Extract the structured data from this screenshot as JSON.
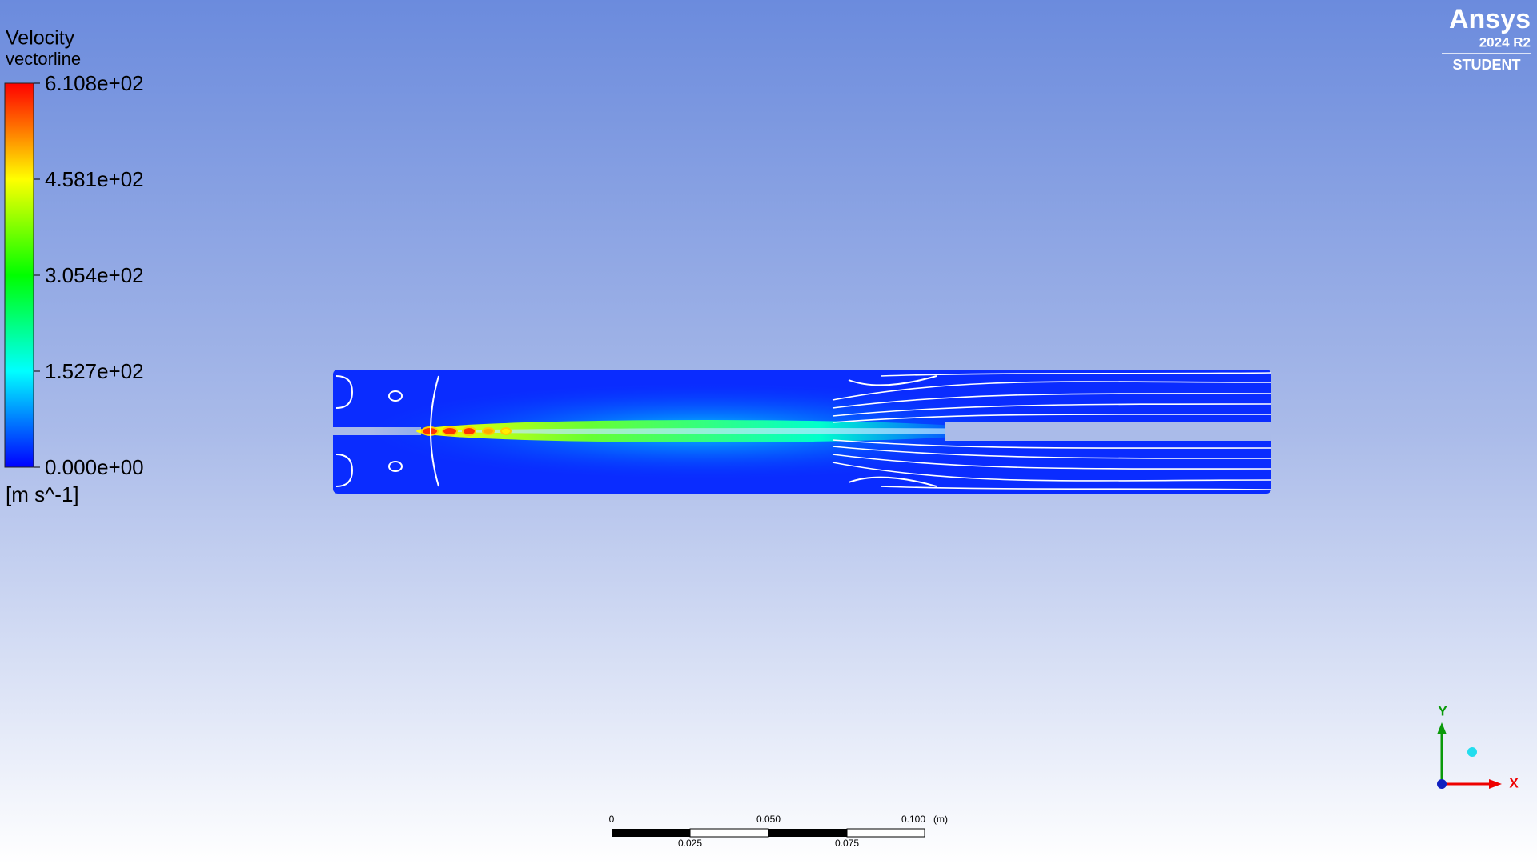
{
  "legend": {
    "title": "Velocity",
    "subtitle": "vectorline",
    "ticks": [
      "6.108e+02",
      "4.581e+02",
      "3.054e+02",
      "1.527e+02",
      "0.000e+00"
    ],
    "unit": "[m s^-1]"
  },
  "branding": {
    "name": "Ansys",
    "version": "2024 R2",
    "edition": "STUDENT"
  },
  "scale_bar": {
    "top_labels": [
      "0",
      "0.050",
      "0.100"
    ],
    "unit": "(m)",
    "bottom_labels": [
      "0.025",
      "0.075"
    ]
  },
  "axes_triad": {
    "y": "Y",
    "x": "X"
  }
}
